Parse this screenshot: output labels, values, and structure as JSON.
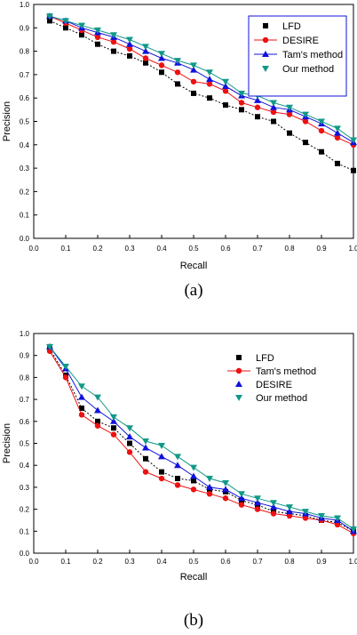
{
  "chart_data": [
    {
      "type": "line",
      "panel_label": "(a)",
      "xlabel": "Recall",
      "ylabel": "Precision",
      "xlim": [
        0.0,
        1.0
      ],
      "ylim": [
        0.0,
        1.0
      ],
      "xticks": [
        "0.0",
        "0.1",
        "0.2",
        "0.3",
        "0.4",
        "0.5",
        "0.6",
        "0.7",
        "0.8",
        "0.9",
        "1.0"
      ],
      "yticks": [
        "0.0",
        "0.1",
        "0.2",
        "0.3",
        "0.4",
        "0.5",
        "0.6",
        "0.7",
        "0.8",
        "0.9",
        "1.0"
      ],
      "grid": false,
      "legend_position": "top-right",
      "legend_framed": true,
      "x": [
        0.05,
        0.1,
        0.15,
        0.2,
        0.25,
        0.3,
        0.35,
        0.4,
        0.45,
        0.5,
        0.55,
        0.6,
        0.65,
        0.7,
        0.75,
        0.8,
        0.85,
        0.9,
        0.95,
        1.0
      ],
      "series": [
        {
          "name": "LFD",
          "color": "#000000",
          "marker": "square",
          "values": [
            0.93,
            0.9,
            0.87,
            0.83,
            0.8,
            0.78,
            0.75,
            0.71,
            0.66,
            0.62,
            0.6,
            0.57,
            0.55,
            0.52,
            0.5,
            0.45,
            0.41,
            0.37,
            0.32,
            0.29
          ]
        },
        {
          "name": "DESIRE",
          "color": "#ee1111",
          "marker": "circle",
          "values": [
            0.95,
            0.92,
            0.89,
            0.86,
            0.84,
            0.81,
            0.77,
            0.74,
            0.71,
            0.67,
            0.66,
            0.63,
            0.58,
            0.56,
            0.54,
            0.53,
            0.5,
            0.46,
            0.43,
            0.4
          ]
        },
        {
          "name": "Tam's method",
          "color": "#1111dd",
          "marker": "triangle-up",
          "values": [
            0.95,
            0.93,
            0.9,
            0.88,
            0.86,
            0.83,
            0.8,
            0.77,
            0.75,
            0.72,
            0.68,
            0.65,
            0.61,
            0.59,
            0.56,
            0.55,
            0.52,
            0.49,
            0.45,
            0.41
          ]
        },
        {
          "name": "Our method",
          "color": "#119988",
          "marker": "triangle-down",
          "values": [
            0.95,
            0.93,
            0.91,
            0.89,
            0.87,
            0.85,
            0.82,
            0.79,
            0.76,
            0.74,
            0.71,
            0.67,
            0.62,
            0.61,
            0.58,
            0.56,
            0.53,
            0.5,
            0.47,
            0.42
          ]
        }
      ]
    },
    {
      "type": "line",
      "panel_label": "(b)",
      "xlabel": "Recall",
      "ylabel": "Precision",
      "xlim": [
        0.0,
        1.0
      ],
      "ylim": [
        0.0,
        1.0
      ],
      "xticks": [
        "0.0",
        "0.1",
        "0.2",
        "0.3",
        "0.4",
        "0.5",
        "0.6",
        "0.7",
        "0.8",
        "0.9",
        "1.0"
      ],
      "yticks": [
        "0.0",
        "0.1",
        "0.2",
        "0.3",
        "0.4",
        "0.5",
        "0.6",
        "0.7",
        "0.8",
        "0.9",
        "1.0"
      ],
      "grid": false,
      "legend_position": "top-right",
      "legend_framed": false,
      "x": [
        0.05,
        0.1,
        0.15,
        0.2,
        0.25,
        0.3,
        0.35,
        0.4,
        0.45,
        0.5,
        0.55,
        0.6,
        0.65,
        0.7,
        0.75,
        0.8,
        0.85,
        0.9,
        0.95,
        1.0
      ],
      "series": [
        {
          "name": "LFD",
          "color": "#000000",
          "marker": "square",
          "values": [
            0.93,
            0.81,
            0.66,
            0.6,
            0.57,
            0.5,
            0.43,
            0.37,
            0.34,
            0.33,
            0.29,
            0.28,
            0.24,
            0.22,
            0.19,
            0.18,
            0.17,
            0.15,
            0.14,
            0.1
          ]
        },
        {
          "name": "Tam's method",
          "color": "#ee1111",
          "marker": "circle",
          "values": [
            0.92,
            0.8,
            0.63,
            0.58,
            0.54,
            0.46,
            0.37,
            0.34,
            0.31,
            0.29,
            0.27,
            0.25,
            0.22,
            0.2,
            0.18,
            0.17,
            0.16,
            0.15,
            0.13,
            0.09
          ]
        },
        {
          "name": "DESIRE",
          "color": "#1111dd",
          "marker": "triangle-up",
          "values": [
            0.94,
            0.84,
            0.71,
            0.65,
            0.6,
            0.53,
            0.48,
            0.44,
            0.4,
            0.35,
            0.3,
            0.29,
            0.25,
            0.23,
            0.21,
            0.19,
            0.18,
            0.16,
            0.15,
            0.1
          ]
        },
        {
          "name": "Our method",
          "color": "#119988",
          "marker": "triangle-down",
          "values": [
            0.94,
            0.85,
            0.76,
            0.71,
            0.62,
            0.57,
            0.51,
            0.49,
            0.44,
            0.39,
            0.34,
            0.32,
            0.27,
            0.25,
            0.23,
            0.21,
            0.19,
            0.17,
            0.16,
            0.11
          ]
        }
      ]
    }
  ]
}
